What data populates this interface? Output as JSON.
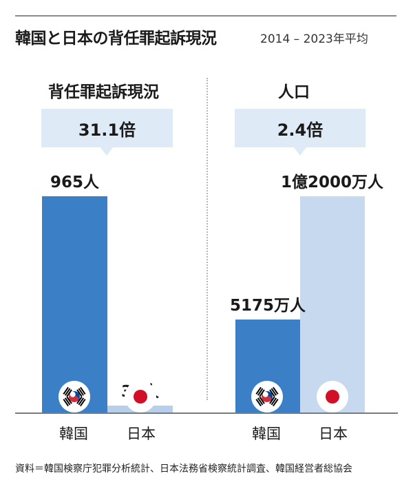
{
  "header": {
    "title": "韓国と日本の背任罪起訴現況",
    "subtitle": "2014 – 2023年平均"
  },
  "chart_data": [
    {
      "type": "bar",
      "title": "背任罪起訴現況",
      "ratio_label": "31.1倍",
      "categories": [
        "韓国",
        "日本"
      ],
      "values": [
        965,
        31
      ],
      "value_labels": [
        "965人",
        "31人"
      ],
      "unit": "人",
      "colors": [
        "#3b7fc7",
        "#b7cfe9"
      ]
    },
    {
      "type": "bar",
      "title": "人口",
      "ratio_label": "2.4倍",
      "categories": [
        "韓国",
        "日本"
      ],
      "values": [
        51750000,
        120000000
      ],
      "value_labels": [
        "5175万人",
        "1億2000万人"
      ],
      "unit": "人",
      "colors": [
        "#3b7fc7",
        "#c6d9ee"
      ]
    }
  ],
  "footer": {
    "source": "資料＝韓国検察庁犯罪分析統計、日本法務省検察統計調査、韓国経営者総協会"
  },
  "icons": {
    "korea_flag": "korea-flag-icon",
    "japan_flag": "japan-flag-icon"
  }
}
